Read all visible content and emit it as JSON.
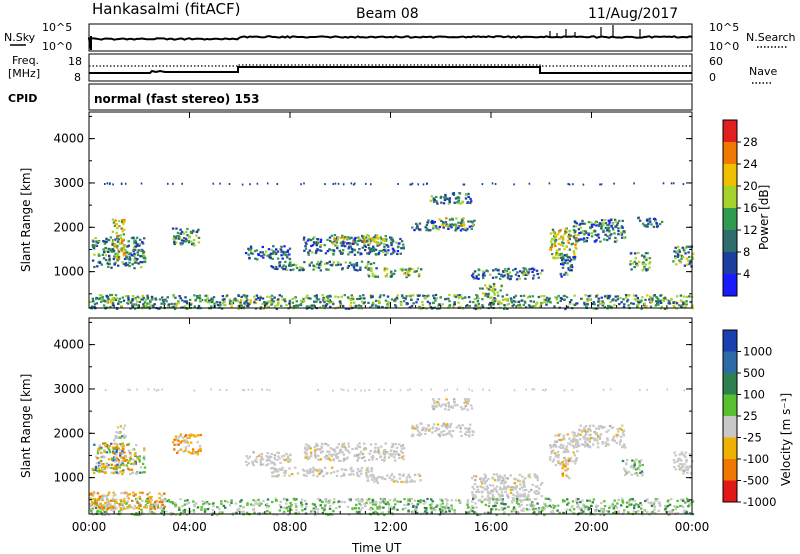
{
  "header": {
    "station": "Hankasalmi (fitACF)",
    "beam": "Beam 08",
    "date": "11/Aug/2017"
  },
  "noise_panel": {
    "left_label": "N.Sky",
    "right_label": "N.Search",
    "left_ticks": [
      "10^5",
      "10^0"
    ],
    "right_ticks": [
      "10^5",
      "10^0"
    ]
  },
  "freq_panel": {
    "left_label_1": "Freq.",
    "left_label_2": "[MHz]",
    "right_label": "Nave",
    "left_ticks": [
      "18",
      "8"
    ],
    "right_ticks": [
      "60",
      "0"
    ]
  },
  "cpid": {
    "label": "CPID",
    "value": "normal (fast stereo) 153"
  },
  "chart_data": [
    {
      "type": "heatmap",
      "title": "",
      "xlabel": "Time UT",
      "ylabel": "Slant Range [km]",
      "x_ticks": [
        "00:00",
        "04:00",
        "08:00",
        "12:00",
        "16:00",
        "20:00",
        "00:00"
      ],
      "y_ticks": [
        "1000",
        "2000",
        "3000",
        "4000"
      ],
      "xlim_hours": [
        0,
        24
      ],
      "ylim_km": [
        180,
        4600
      ],
      "colorbar_label": "Power [dB]",
      "colorbar_ticks": [
        "4",
        "8",
        "12",
        "16",
        "20",
        "24",
        "28"
      ],
      "colorbar_colors": [
        "#1a1aff",
        "#1e3fa0",
        "#2f6c6c",
        "#2f9a50",
        "#a6d22e",
        "#f0c000",
        "#f07a00",
        "#e02020"
      ],
      "echo_regions": [
        {
          "t": [
            0.1,
            2.2
          ],
          "r": [
            1100,
            1800
          ],
          "level": 0.35
        },
        {
          "t": [
            0.9,
            1.4
          ],
          "r": [
            1300,
            2200
          ],
          "level": 0.6
        },
        {
          "t": [
            3.3,
            4.4
          ],
          "r": [
            1600,
            2000
          ],
          "level": 0.4
        },
        {
          "t": [
            6.2,
            8.0
          ],
          "r": [
            1300,
            1600
          ],
          "level": 0.3
        },
        {
          "t": [
            7.2,
            11.3
          ],
          "r": [
            1050,
            1250
          ],
          "level": 0.35
        },
        {
          "t": [
            8.5,
            12.5
          ],
          "r": [
            1400,
            1800
          ],
          "level": 0.3
        },
        {
          "t": [
            9.6,
            12.0
          ],
          "r": [
            1650,
            1850
          ],
          "level": 0.55
        },
        {
          "t": [
            11.0,
            13.2
          ],
          "r": [
            900,
            1100
          ],
          "level": 0.45
        },
        {
          "t": [
            12.8,
            15.3
          ],
          "r": [
            1950,
            2200
          ],
          "level": 0.3
        },
        {
          "t": [
            13.5,
            15.2
          ],
          "r": [
            2550,
            2800
          ],
          "level": 0.35
        },
        {
          "t": [
            13.9,
            14.9
          ],
          "r": [
            2050,
            2250
          ],
          "level": 0.55
        },
        {
          "t": [
            15.5,
            16.4
          ],
          "r": [
            500,
            750
          ],
          "level": 0.5
        },
        {
          "t": [
            15.2,
            18.0
          ],
          "r": [
            850,
            1100
          ],
          "level": 0.3
        },
        {
          "t": [
            18.3,
            19.4
          ],
          "r": [
            1300,
            2000
          ],
          "level": 0.55
        },
        {
          "t": [
            19.2,
            21.3
          ],
          "r": [
            1700,
            2200
          ],
          "level": 0.3
        },
        {
          "t": [
            18.7,
            19.3
          ],
          "r": [
            900,
            1400
          ],
          "level": 0.3
        },
        {
          "t": [
            21.5,
            22.3
          ],
          "r": [
            1050,
            1450
          ],
          "level": 0.4
        },
        {
          "t": [
            23.2,
            24.0
          ],
          "r": [
            1100,
            1600
          ],
          "level": 0.4
        },
        {
          "t": [
            0.0,
            24.0
          ],
          "r": [
            180,
            500
          ],
          "level": 0.4
        },
        {
          "t": [
            21.8,
            22.8
          ],
          "r": [
            2000,
            2250
          ],
          "level": 0.3
        }
      ]
    },
    {
      "type": "heatmap",
      "title": "",
      "xlabel": "Time UT",
      "ylabel": "Slant Range [km]",
      "x_ticks": [
        "00:00",
        "04:00",
        "08:00",
        "12:00",
        "16:00",
        "20:00",
        "00:00"
      ],
      "y_ticks": [
        "1000",
        "2000",
        "3000",
        "4000"
      ],
      "xlim_hours": [
        0,
        24
      ],
      "ylim_km": [
        180,
        4600
      ],
      "colorbar_label": "Velocity [m s⁻¹]",
      "colorbar_ticks": [
        "1000",
        "500",
        "100",
        "25",
        "-25",
        "-100",
        "-500",
        "-1000"
      ],
      "colorbar_colors": [
        "#1a3fb0",
        "#2f6aa8",
        "#2f8050",
        "#58c030",
        "#c8c8c8",
        "#f0b000",
        "#f07800",
        "#e01818"
      ],
      "echo_regions": [
        {
          "t": [
            0.1,
            2.2
          ],
          "r": [
            1100,
            1800
          ],
          "class": "mixed"
        },
        {
          "t": [
            0.9,
            1.4
          ],
          "r": [
            1300,
            2200
          ],
          "class": "mixed"
        },
        {
          "t": [
            3.3,
            4.4
          ],
          "r": [
            1550,
            2000
          ],
          "class": "negative"
        },
        {
          "t": [
            6.2,
            8.0
          ],
          "r": [
            1300,
            1600
          ],
          "class": "grey"
        },
        {
          "t": [
            7.2,
            11.3
          ],
          "r": [
            1050,
            1250
          ],
          "class": "grey"
        },
        {
          "t": [
            8.5,
            12.5
          ],
          "r": [
            1400,
            1800
          ],
          "class": "grey"
        },
        {
          "t": [
            11.0,
            13.2
          ],
          "r": [
            900,
            1100
          ],
          "class": "grey"
        },
        {
          "t": [
            12.8,
            15.3
          ],
          "r": [
            1950,
            2250
          ],
          "class": "grey"
        },
        {
          "t": [
            13.5,
            15.2
          ],
          "r": [
            2550,
            2800
          ],
          "class": "grey"
        },
        {
          "t": [
            15.2,
            18.0
          ],
          "r": [
            500,
            1100
          ],
          "class": "grey"
        },
        {
          "t": [
            18.3,
            19.4
          ],
          "r": [
            1300,
            2000
          ],
          "class": "grey"
        },
        {
          "t": [
            19.2,
            21.3
          ],
          "r": [
            1700,
            2200
          ],
          "class": "grey"
        },
        {
          "t": [
            18.8,
            19.1
          ],
          "r": [
            1000,
            1400
          ],
          "class": "negative"
        },
        {
          "t": [
            21.2,
            22.0
          ],
          "r": [
            1050,
            1450
          ],
          "class": "positive"
        },
        {
          "t": [
            23.2,
            24.0
          ],
          "r": [
            1100,
            1600
          ],
          "class": "grey"
        },
        {
          "t": [
            0.0,
            24.0
          ],
          "r": [
            180,
            550
          ],
          "class": "positive"
        },
        {
          "t": [
            0.0,
            3.0
          ],
          "r": [
            300,
            700
          ],
          "class": "negative"
        }
      ]
    }
  ]
}
